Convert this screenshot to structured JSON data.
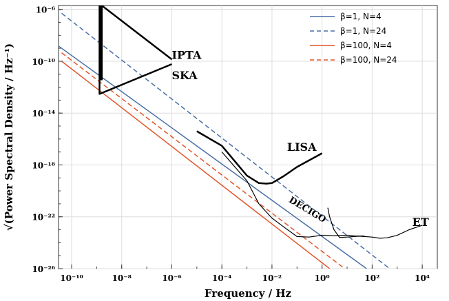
{
  "chart_data": {
    "type": "line",
    "xlabel": "Frequency / Hz",
    "ylabel": "√(Power Spectral Density / Hz⁻¹)",
    "x_scale": "log",
    "y_scale": "log",
    "xlim": [
      3e-11,
      40000
    ],
    "ylim": [
      1e-26,
      2e-06
    ],
    "x_ticks": [
      {
        "value": 1e-10,
        "label": "10⁻¹⁰"
      },
      {
        "value": 1e-08,
        "label": "10⁻⁸"
      },
      {
        "value": 1e-06,
        "label": "10⁻⁶"
      },
      {
        "value": 0.0001,
        "label": "10⁻⁴"
      },
      {
        "value": 0.01,
        "label": "10⁻²"
      },
      {
        "value": 1,
        "label": "10⁰"
      },
      {
        "value": 100,
        "label": "10²"
      },
      {
        "value": 10000,
        "label": "10⁴"
      }
    ],
    "y_ticks": [
      {
        "value": 1e-06,
        "label": "10⁻⁶"
      },
      {
        "value": 1e-10,
        "label": "10⁻¹⁰"
      },
      {
        "value": 1e-14,
        "label": "10⁻¹⁴"
      },
      {
        "value": 1e-18,
        "label": "10⁻¹⁸"
      },
      {
        "value": 1e-22,
        "label": "10⁻²²"
      },
      {
        "value": 1e-26,
        "label": "10⁻²⁶"
      }
    ],
    "grid": true,
    "legend_position": "top-right",
    "series": [
      {
        "name": "β=1, N=4",
        "color": "#4a6fa5",
        "style": "solid",
        "x": [
          3e-11,
          60
        ],
        "y": [
          1.5e-09,
          1e-26
        ]
      },
      {
        "name": "β=1, N=24",
        "color": "#4a6fa5",
        "style": "dashed",
        "x": [
          4e-11,
          500
        ],
        "y": [
          5e-07,
          1e-26
        ]
      },
      {
        "name": "β=100, N=4",
        "color": "#e2562a",
        "style": "solid",
        "x": [
          4e-11,
          2
        ],
        "y": [
          1e-10,
          1e-26
        ]
      },
      {
        "name": "β=100, N=24",
        "color": "#e2562a",
        "style": "dashed",
        "x": [
          4e-11,
          8
        ],
        "y": [
          4.5e-10,
          1e-26
        ]
      }
    ],
    "detectors": [
      {
        "label": "IPTA",
        "color": "#000000",
        "width": 2.5,
        "x": [
          1.4e-09,
          1.4e-09,
          1.6e-09,
          1.6e-09,
          1e-06
        ],
        "y": [
          2e-06,
          4e-12,
          4e-12,
          2e-06,
          1.4e-10
        ]
      },
      {
        "label": "SKA",
        "color": "#000000",
        "width": 2.5,
        "x": [
          1.3e-09,
          1.3e-09,
          1e-06
        ],
        "y": [
          2e-06,
          3e-13,
          6e-11
        ]
      },
      {
        "label": "LISA",
        "color": "#000000",
        "width": 2.5,
        "x": [
          1e-05,
          0.0001,
          0.001,
          0.003,
          0.006,
          0.01,
          0.03,
          0.1,
          1
        ],
        "y": [
          4e-16,
          3e-17,
          1.5e-19,
          4e-20,
          3.6e-20,
          4e-20,
          1.4e-19,
          7e-19,
          8e-18
        ]
      },
      {
        "label": "DECIGO",
        "color": "#000000",
        "width": 1.2,
        "x": [
          0.0001,
          0.001,
          0.003,
          0.01,
          0.03,
          0.1,
          0.3,
          1,
          3,
          10,
          20,
          50
        ],
        "y": [
          1e-17,
          6e-20,
          1e-21,
          8e-23,
          1.6e-23,
          3e-24,
          2.7e-24,
          3.8e-24,
          3.4e-24,
          3.8e-24,
          3.3e-24,
          3.3e-24
        ]
      },
      {
        "label": "ET",
        "color": "#000000",
        "width": 1.2,
        "x": [
          1.7,
          2,
          3,
          5,
          10,
          30,
          100,
          200,
          400,
          1000,
          3000,
          10000
        ],
        "y": [
          5e-22,
          1e-22,
          1e-23,
          2.5e-24,
          2.7e-24,
          3.2e-24,
          2.7e-24,
          2.2e-24,
          2.4e-24,
          3.7e-24,
          1e-23,
          2.2e-23
        ]
      }
    ],
    "annotations": [
      {
        "text": "IPTA",
        "x": 1e-06,
        "y": 1.5e-10,
        "rotation": 0
      },
      {
        "text": "SKA",
        "x": 1e-06,
        "y": 4e-12,
        "rotation": 0
      },
      {
        "text": "LISA",
        "x": 0.04,
        "y": 1.2e-17,
        "rotation": 0
      },
      {
        "text": "DECIGO",
        "x": 0.045,
        "y": 1.5e-21,
        "rotation": 31
      },
      {
        "text": "ET",
        "x": 4000,
        "y": 2e-23,
        "rotation": 0
      }
    ]
  }
}
